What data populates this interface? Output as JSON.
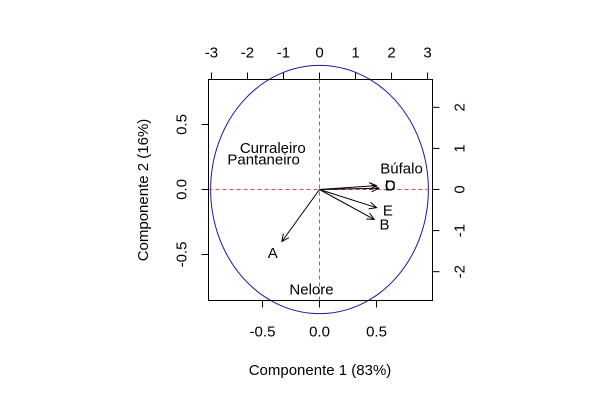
{
  "chart_data": {
    "type": "scatter",
    "subtype": "pca-biplot",
    "xlabel": "Componente 1 (83%)",
    "ylabel": "Componente 2 (16%)",
    "xlim": [
      -0.95,
      0.98
    ],
    "ylim": [
      -0.86,
      0.86
    ],
    "x_ticks": [
      -0.5,
      0.0,
      0.5
    ],
    "x_tick_labels": [
      "-0.5",
      "0.0",
      "0.5"
    ],
    "y_ticks": [
      -0.5,
      0.0,
      0.5
    ],
    "y_tick_labels": [
      "-0.5",
      "0.0",
      "0.5"
    ],
    "top_axis": {
      "ticks": [
        -3,
        -2,
        -1,
        0,
        1,
        2,
        3
      ],
      "tick_labels": [
        "-3",
        "-2",
        "-1",
        "0",
        "1",
        "2",
        "3"
      ],
      "scale_per_unit": 0.316
    },
    "right_axis": {
      "ticks": [
        -2,
        -1,
        0,
        1,
        2
      ],
      "tick_labels": [
        "-2",
        "-1",
        "0",
        "1",
        "2"
      ],
      "scale_per_unit": 0.316
    },
    "grid": false,
    "circle_radius": 0.955,
    "reference_lines": {
      "x": 0,
      "y": 0,
      "color": "#e34a4a",
      "style": "dashed"
    },
    "circle_color": "#1a1aa0",
    "vectors": [
      {
        "label": "A",
        "x": -0.33,
        "y": -0.4,
        "label_x": -0.41,
        "label_y": -0.49
      },
      {
        "label": "B",
        "x": 0.48,
        "y": -0.23,
        "label_x": 0.57,
        "label_y": -0.27
      },
      {
        "label": "C",
        "x": 0.5,
        "y": 0.03,
        "label_x": 0.62,
        "label_y": 0.03
      },
      {
        "label": "D",
        "x": 0.52,
        "y": 0.01,
        "label_x": 0.62,
        "label_y": 0.03
      },
      {
        "label": "E",
        "x": 0.5,
        "y": -0.14,
        "label_x": 0.6,
        "label_y": -0.16
      }
    ],
    "labels": [
      {
        "text": "Búfalo",
        "x": 0.72,
        "y": 0.16
      },
      {
        "text": "Curraleiro",
        "x": -0.41,
        "y": 0.32
      },
      {
        "text": "Pantaneiro",
        "x": -0.49,
        "y": 0.23
      },
      {
        "text": "Nelore",
        "x": -0.07,
        "y": -0.77
      }
    ]
  }
}
